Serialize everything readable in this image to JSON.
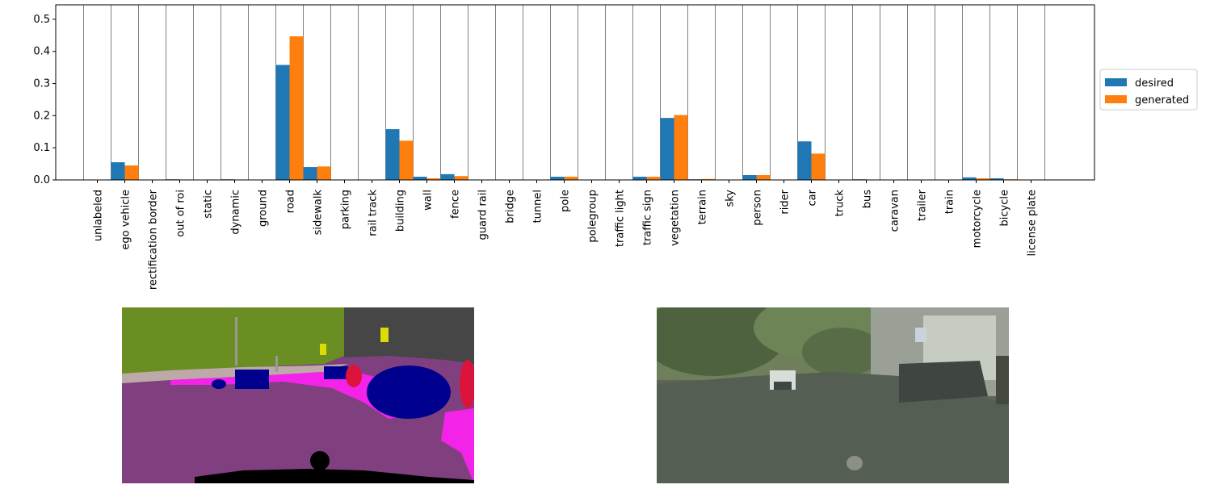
{
  "chart_data": {
    "type": "bar",
    "title": "",
    "xlabel": "",
    "ylabel": "",
    "ylim": [
      0,
      0.545
    ],
    "yticks": [
      0.0,
      0.1,
      0.2,
      0.3,
      0.4,
      0.5
    ],
    "ytick_labels": [
      "0.0",
      "0.1",
      "0.2",
      "0.3",
      "0.4",
      "0.5"
    ],
    "grid": "vertical category separators",
    "legend_placement": "right, outside plot",
    "categories": [
      "unlabeled",
      "ego vehicle",
      "rectification border",
      "out of roi",
      "static",
      "dynamic",
      "ground",
      "road",
      "sidewalk",
      "parking",
      "rail track",
      "building",
      "wall",
      "fence",
      "guard rail",
      "bridge",
      "tunnel",
      "pole",
      "polegroup",
      "traffic light",
      "traffic sign",
      "vegetation",
      "terrain",
      "sky",
      "person",
      "rider",
      "car",
      "truck",
      "bus",
      "caravan",
      "trailer",
      "train",
      "motorcycle",
      "bicycle",
      "license plate"
    ],
    "series": [
      {
        "name": "desired",
        "color": "#1f77b4",
        "values": [
          0.0,
          0.055,
          0.0,
          0.002,
          0.0,
          0.002,
          0.0,
          0.358,
          0.04,
          0.0,
          0.0,
          0.158,
          0.01,
          0.018,
          0.0,
          0.0,
          0.0,
          0.01,
          0.0,
          0.0,
          0.01,
          0.193,
          0.002,
          0.0,
          0.015,
          0.0,
          0.12,
          0.0,
          0.002,
          0.0,
          0.0,
          0.0,
          0.008,
          0.005,
          0.0
        ]
      },
      {
        "name": "generated",
        "color": "#ff7f0e",
        "values": [
          0.0,
          0.045,
          0.0,
          0.0,
          0.0,
          0.0,
          0.0,
          0.447,
          0.042,
          0.0,
          0.0,
          0.122,
          0.005,
          0.012,
          0.0,
          0.0,
          0.0,
          0.01,
          0.0,
          0.0,
          0.01,
          0.202,
          0.003,
          0.0,
          0.015,
          0.0,
          0.082,
          0.0,
          0.0,
          0.0,
          0.0,
          0.0,
          0.005,
          0.002,
          0.0
        ]
      }
    ]
  },
  "images": {
    "segmentation_map": "semantic-segmentation-image",
    "generated_photo": "generated-street-photo"
  }
}
